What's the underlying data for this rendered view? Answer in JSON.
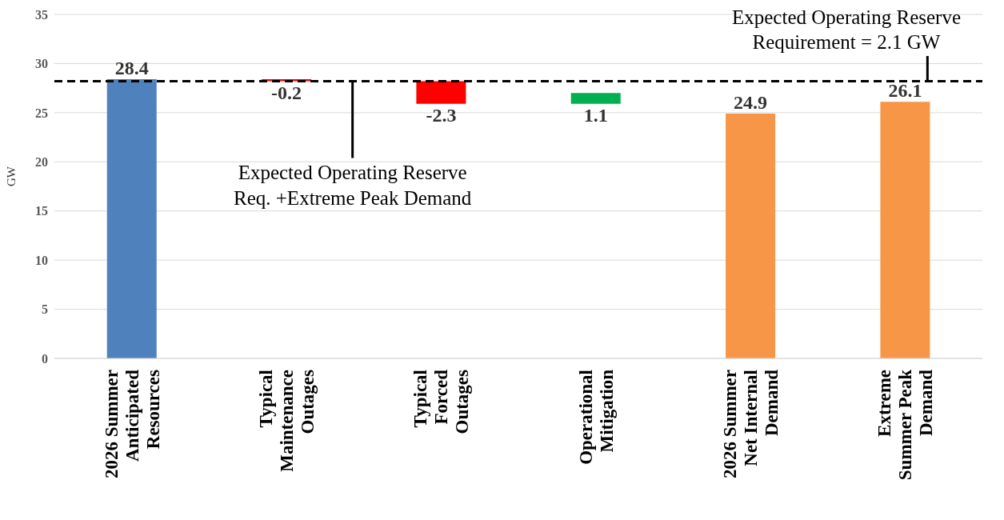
{
  "chart_data": {
    "type": "bar",
    "ylabel": "GW",
    "categories": [
      "2026 Summer Anticipated Resources",
      "Typical Maintenance Outages",
      "Typical Forced Outages",
      "Operational Mitigation",
      "2026 Summer Net Internal Demand",
      "Extreme Summer Peak Demand"
    ],
    "values": [
      28.4,
      -0.2,
      -2.3,
      1.1,
      24.9,
      26.1
    ],
    "base": [
      0,
      28.4,
      28.2,
      25.9,
      0,
      0
    ],
    "colors": [
      "#4f81bd",
      "#ff0000",
      "#ff0000",
      "#00b050",
      "#f79646",
      "#f79646"
    ],
    "ylim": [
      0,
      35
    ],
    "yticks": [
      0,
      5,
      10,
      15,
      20,
      25,
      30,
      35
    ],
    "grid": "y",
    "data_labels": true,
    "ref_lines": [
      {
        "axis": "y",
        "value": 28.2,
        "color": "#000000",
        "line_style": "dashed"
      }
    ],
    "annotations": [
      {
        "text": "Expected Operating Reserve Req. +Extreme Peak Demand",
        "y": 28.2
      },
      {
        "text": "Expected Operating Reserve Requirement = 2.1 GW",
        "y": 28.2
      }
    ]
  }
}
